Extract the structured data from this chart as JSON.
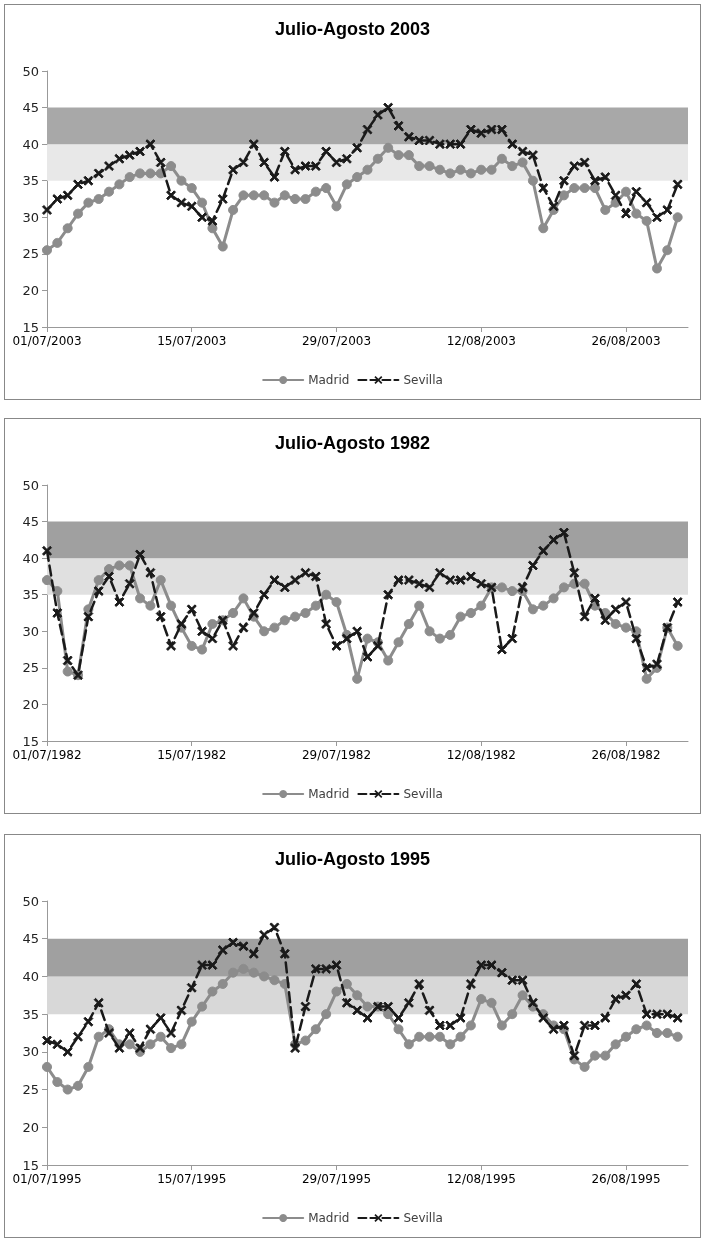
{
  "chart_data": [
    {
      "type": "line",
      "title": "Julio-Agosto 2003",
      "x": [
        "2003-07-01",
        "2003-07-02",
        "2003-07-03",
        "2003-07-04",
        "2003-07-05",
        "2003-07-06",
        "2003-07-07",
        "2003-07-08",
        "2003-07-09",
        "2003-07-10",
        "2003-07-11",
        "2003-07-12",
        "2003-07-13",
        "2003-07-14",
        "2003-07-15",
        "2003-07-16",
        "2003-07-17",
        "2003-07-18",
        "2003-07-19",
        "2003-07-20",
        "2003-07-21",
        "2003-07-22",
        "2003-07-23",
        "2003-07-24",
        "2003-07-25",
        "2003-07-26",
        "2003-07-27",
        "2003-07-28",
        "2003-07-29",
        "2003-07-30",
        "2003-07-31",
        "2003-08-01",
        "2003-08-02",
        "2003-08-03",
        "2003-08-04",
        "2003-08-05",
        "2003-08-06",
        "2003-08-07",
        "2003-08-08",
        "2003-08-09",
        "2003-08-10",
        "2003-08-11",
        "2003-08-12",
        "2003-08-13",
        "2003-08-14",
        "2003-08-15",
        "2003-08-16",
        "2003-08-17",
        "2003-08-18",
        "2003-08-19",
        "2003-08-20",
        "2003-08-21",
        "2003-08-22",
        "2003-08-23",
        "2003-08-24",
        "2003-08-25",
        "2003-08-26",
        "2003-08-27",
        "2003-08-28",
        "2003-08-29",
        "2003-08-30",
        "2003-08-31"
      ],
      "series": [
        {
          "name": "Madrid",
          "color": "#8c8c8c",
          "marker": "circle",
          "line_style": "solid",
          "values": [
            25.5,
            26.5,
            28.5,
            30.5,
            32,
            32.5,
            33.5,
            34.5,
            35.5,
            36,
            36,
            36,
            37,
            35,
            34,
            32,
            28.5,
            26,
            31,
            33,
            33,
            33,
            32,
            33,
            32.5,
            32.5,
            33.5,
            34,
            31.5,
            34.5,
            35.5,
            36.5,
            38,
            39.5,
            38.5,
            38.5,
            37,
            37,
            36.5,
            36,
            36.5,
            36,
            36.5,
            36.5,
            38,
            37,
            37.5,
            35,
            28.5,
            31,
            33,
            34,
            34,
            34,
            31,
            32,
            33.5,
            30.5,
            29.5,
            23,
            25.5,
            30
          ]
        },
        {
          "name": "Sevilla",
          "color": "#1a1a1a",
          "marker": "cross",
          "line_style": "dashed",
          "values": [
            31,
            32.5,
            33,
            34.5,
            35,
            36,
            37,
            38,
            38.5,
            39,
            40,
            37.5,
            33,
            32,
            31.5,
            30,
            29.5,
            32.5,
            36.5,
            37.5,
            40,
            37.5,
            35.5,
            39,
            36.5,
            37,
            37,
            39,
            37.5,
            38,
            39.5,
            42,
            44,
            45,
            42.5,
            41,
            40.5,
            40.5,
            40,
            40,
            40,
            42,
            41.5,
            42,
            42,
            40,
            39,
            38.5,
            34,
            31.5,
            35,
            37,
            37.5,
            35,
            35.5,
            33,
            30.5,
            33.5,
            32,
            30,
            31,
            34.5
          ]
        }
      ],
      "xlim": [
        "2003-07-01",
        "2003-09-01"
      ],
      "xticks": [
        {
          "value": "2003-07-01",
          "label": "01/07/2003"
        },
        {
          "value": "2003-07-15",
          "label": "15/07/2003"
        },
        {
          "value": "2003-07-29",
          "label": "29/07/2003"
        },
        {
          "value": "2003-08-12",
          "label": "12/08/2003"
        },
        {
          "value": "2003-08-26",
          "label": "26/08/2003"
        }
      ],
      "ylim": [
        15,
        50
      ],
      "yticks": [
        15,
        20,
        25,
        30,
        35,
        40,
        45,
        50
      ],
      "bands": [
        {
          "axis": "y",
          "from": 35,
          "to": 40,
          "color": "#e8e8e8"
        },
        {
          "axis": "y",
          "from": 40,
          "to": 45,
          "color": "#a8a8a8"
        }
      ],
      "grid": false,
      "legend": "bottom"
    },
    {
      "type": "line",
      "title": "Julio-Agosto 1982",
      "x": [
        "1982-07-01",
        "1982-07-02",
        "1982-07-03",
        "1982-07-04",
        "1982-07-05",
        "1982-07-06",
        "1982-07-07",
        "1982-07-08",
        "1982-07-09",
        "1982-07-10",
        "1982-07-11",
        "1982-07-12",
        "1982-07-13",
        "1982-07-14",
        "1982-07-15",
        "1982-07-16",
        "1982-07-17",
        "1982-07-18",
        "1982-07-19",
        "1982-07-20",
        "1982-07-21",
        "1982-07-22",
        "1982-07-23",
        "1982-07-24",
        "1982-07-25",
        "1982-07-26",
        "1982-07-27",
        "1982-07-28",
        "1982-07-29",
        "1982-07-30",
        "1982-07-31",
        "1982-08-01",
        "1982-08-02",
        "1982-08-03",
        "1982-08-04",
        "1982-08-05",
        "1982-08-06",
        "1982-08-07",
        "1982-08-08",
        "1982-08-09",
        "1982-08-10",
        "1982-08-11",
        "1982-08-12",
        "1982-08-13",
        "1982-08-14",
        "1982-08-15",
        "1982-08-16",
        "1982-08-17",
        "1982-08-18",
        "1982-08-19",
        "1982-08-20",
        "1982-08-21",
        "1982-08-22",
        "1982-08-23",
        "1982-08-24",
        "1982-08-25",
        "1982-08-26",
        "1982-08-27",
        "1982-08-28",
        "1982-08-29",
        "1982-08-30",
        "1982-08-31"
      ],
      "series": [
        {
          "name": "Madrid",
          "color": "#8c8c8c",
          "marker": "circle",
          "line_style": "solid",
          "values": [
            37,
            35.5,
            24.5,
            24,
            33,
            37,
            38.5,
            39,
            39,
            34.5,
            33.5,
            37,
            33.5,
            30.5,
            28,
            27.5,
            31,
            31.5,
            32.5,
            34.5,
            32,
            30,
            30.5,
            31.5,
            32,
            32.5,
            33.5,
            35,
            34,
            29.5,
            23.5,
            29,
            28.5,
            26,
            28.5,
            31,
            33.5,
            30,
            29,
            29.5,
            32,
            32.5,
            33.5,
            36,
            36,
            35.5,
            35.5,
            33,
            33.5,
            34.5,
            36,
            36.5,
            36.5,
            33.5,
            32.5,
            31,
            30.5,
            30,
            23.5,
            25,
            30.5,
            28
          ]
        },
        {
          "name": "Sevilla",
          "color": "#1a1a1a",
          "marker": "cross",
          "line_style": "dashed",
          "values": [
            41,
            32.5,
            26,
            24,
            32,
            35.5,
            37.5,
            34,
            36.5,
            40.5,
            38,
            32,
            28,
            31,
            33,
            30,
            29,
            31.5,
            28,
            30.5,
            32.5,
            35,
            37,
            36,
            37,
            38,
            37.5,
            31,
            28,
            29,
            30,
            26.5,
            28,
            35,
            37,
            37,
            36.5,
            36,
            38,
            37,
            37,
            37.5,
            36.5,
            36,
            27.5,
            29,
            36,
            39,
            41,
            42.5,
            43.5,
            38,
            32,
            34.5,
            31.5,
            33,
            34,
            29,
            25,
            25.5,
            30.5,
            34
          ]
        }
      ],
      "xlim": [
        "1982-07-01",
        "1982-09-01"
      ],
      "xticks": [
        {
          "value": "1982-07-01",
          "label": "01/07/1982"
        },
        {
          "value": "1982-07-15",
          "label": "15/07/1982"
        },
        {
          "value": "1982-07-29",
          "label": "29/07/1982"
        },
        {
          "value": "1982-08-12",
          "label": "12/08/1982"
        },
        {
          "value": "1982-08-26",
          "label": "26/08/1982"
        }
      ],
      "ylim": [
        15,
        50
      ],
      "yticks": [
        15,
        20,
        25,
        30,
        35,
        40,
        45,
        50
      ],
      "bands": [
        {
          "axis": "y",
          "from": 35,
          "to": 40,
          "color": "#e0e0e0"
        },
        {
          "axis": "y",
          "from": 40,
          "to": 45,
          "color": "#a0a0a0"
        }
      ],
      "grid": false,
      "legend": "bottom"
    },
    {
      "type": "line",
      "title": "Julio-Agosto 1995",
      "x": [
        "1995-07-01",
        "1995-07-02",
        "1995-07-03",
        "1995-07-04",
        "1995-07-05",
        "1995-07-06",
        "1995-07-07",
        "1995-07-08",
        "1995-07-09",
        "1995-07-10",
        "1995-07-11",
        "1995-07-12",
        "1995-07-13",
        "1995-07-14",
        "1995-07-15",
        "1995-07-16",
        "1995-07-17",
        "1995-07-18",
        "1995-07-19",
        "1995-07-20",
        "1995-07-21",
        "1995-07-22",
        "1995-07-23",
        "1995-07-24",
        "1995-07-25",
        "1995-07-26",
        "1995-07-27",
        "1995-07-28",
        "1995-07-29",
        "1995-07-30",
        "1995-07-31",
        "1995-08-01",
        "1995-08-02",
        "1995-08-03",
        "1995-08-04",
        "1995-08-05",
        "1995-08-06",
        "1995-08-07",
        "1995-08-08",
        "1995-08-09",
        "1995-08-10",
        "1995-08-11",
        "1995-08-12",
        "1995-08-13",
        "1995-08-14",
        "1995-08-15",
        "1995-08-16",
        "1995-08-17",
        "1995-08-18",
        "1995-08-19",
        "1995-08-20",
        "1995-08-21",
        "1995-08-22",
        "1995-08-23",
        "1995-08-24",
        "1995-08-25",
        "1995-08-26",
        "1995-08-27",
        "1995-08-28",
        "1995-08-29",
        "1995-08-30",
        "1995-08-31"
      ],
      "series": [
        {
          "name": "Madrid",
          "color": "#8c8c8c",
          "marker": "circle",
          "line_style": "solid",
          "values": [
            28,
            26,
            25,
            25.5,
            28,
            32,
            33,
            31,
            31,
            30,
            31,
            32,
            30.5,
            31,
            34,
            36,
            38,
            39,
            40.5,
            41,
            40.5,
            40,
            39.5,
            39,
            31,
            31.5,
            33,
            35,
            38,
            39,
            37.5,
            36,
            36,
            35,
            33,
            31,
            32,
            32,
            32,
            31,
            32,
            33.5,
            37,
            36.5,
            33.5,
            35,
            37.5,
            36,
            35,
            33.5,
            33,
            29,
            28,
            29.5,
            29.5,
            31,
            32,
            33,
            33.5,
            32.5,
            32.5,
            32
          ]
        },
        {
          "name": "Sevilla",
          "color": "#1a1a1a",
          "marker": "cross",
          "line_style": "dashed",
          "values": [
            31.5,
            31,
            30,
            32,
            34,
            36.5,
            32.5,
            30.5,
            32.5,
            30.5,
            33,
            34.5,
            32.5,
            35.5,
            38.5,
            41.5,
            41.5,
            43.5,
            44.5,
            44,
            43,
            45.5,
            46.5,
            43,
            30.5,
            36,
            41,
            41,
            41.5,
            36.5,
            35.5,
            34.5,
            36,
            36,
            34.5,
            36.5,
            39,
            35.5,
            33.5,
            33.5,
            34.5,
            39,
            41.5,
            41.5,
            40.5,
            39.5,
            39.5,
            36.5,
            34.5,
            33,
            33.5,
            29.5,
            33.5,
            33.5,
            34.5,
            37,
            37.5,
            39,
            35,
            35,
            35,
            34.5
          ]
        }
      ],
      "xlim": [
        "1995-07-01",
        "1995-09-01"
      ],
      "xticks": [
        {
          "value": "1995-07-01",
          "label": "01/07/1995"
        },
        {
          "value": "1995-07-15",
          "label": "15/07/1995"
        },
        {
          "value": "1995-07-29",
          "label": "29/07/1995"
        },
        {
          "value": "1995-08-12",
          "label": "12/08/1995"
        },
        {
          "value": "1995-08-26",
          "label": "26/08/1995"
        }
      ],
      "ylim": [
        15,
        50
      ],
      "yticks": [
        15,
        20,
        25,
        30,
        35,
        40,
        45,
        50
      ],
      "bands": [
        {
          "axis": "y",
          "from": 35,
          "to": 40,
          "color": "#d8d8d8"
        },
        {
          "axis": "y",
          "from": 40,
          "to": 45,
          "color": "#a0a0a0"
        }
      ],
      "grid": false,
      "legend": "bottom"
    }
  ]
}
